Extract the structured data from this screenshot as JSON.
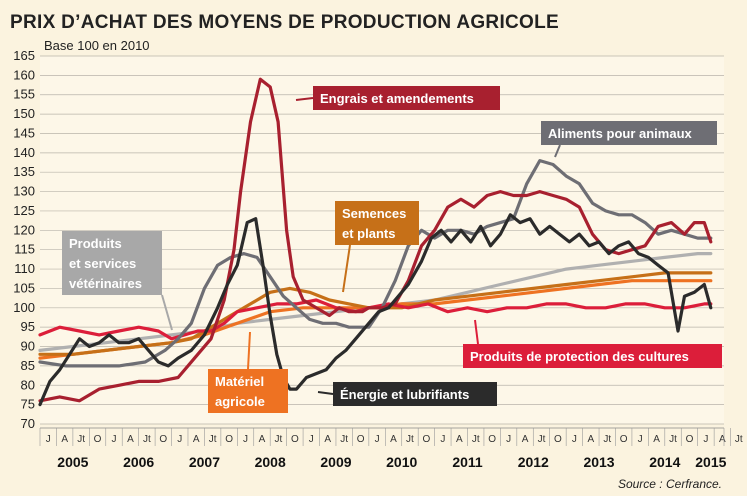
{
  "chart_data": {
    "type": "line",
    "title": "PRIX D’ACHAT DES MOYENS DE PRODUCTION AGRICOLE",
    "subtitle": "Base 100 en 2010",
    "source": "Source : Cerfrance.",
    "ylim": [
      70,
      165
    ],
    "yticks": [
      70,
      75,
      80,
      85,
      90,
      95,
      100,
      105,
      110,
      115,
      120,
      125,
      130,
      135,
      140,
      145,
      150,
      155,
      160,
      165
    ],
    "years": [
      "2005",
      "2006",
      "2007",
      "2008",
      "2009",
      "2010",
      "2011",
      "2012",
      "2013",
      "2014",
      "2015"
    ],
    "month_ticks": [
      "J",
      "A",
      "Jt",
      "O"
    ],
    "grid": true,
    "series": [
      {
        "name": "Engrais et amendements",
        "color": "#a8202f",
        "points": [
          [
            2005.0,
            76
          ],
          [
            2005.3,
            77
          ],
          [
            2005.6,
            76
          ],
          [
            2005.9,
            79
          ],
          [
            2006.2,
            80
          ],
          [
            2006.5,
            81
          ],
          [
            2006.8,
            81
          ],
          [
            2007.1,
            82
          ],
          [
            2007.4,
            88
          ],
          [
            2007.6,
            92
          ],
          [
            2007.8,
            102
          ],
          [
            2007.95,
            115
          ],
          [
            2008.05,
            130
          ],
          [
            2008.2,
            148
          ],
          [
            2008.35,
            159
          ],
          [
            2008.5,
            157
          ],
          [
            2008.62,
            148
          ],
          [
            2008.75,
            120
          ],
          [
            2008.85,
            108
          ],
          [
            2009.0,
            102
          ],
          [
            2009.2,
            100
          ],
          [
            2009.4,
            98
          ],
          [
            2009.55,
            100
          ],
          [
            2009.7,
            99
          ],
          [
            2009.9,
            99
          ],
          [
            2010.0,
            100
          ],
          [
            2010.2,
            100
          ],
          [
            2010.4,
            101
          ],
          [
            2010.6,
            107
          ],
          [
            2010.8,
            116
          ],
          [
            2011.0,
            120
          ],
          [
            2011.2,
            126
          ],
          [
            2011.4,
            128
          ],
          [
            2011.6,
            126
          ],
          [
            2011.8,
            129
          ],
          [
            2012.0,
            130
          ],
          [
            2012.2,
            129
          ],
          [
            2012.4,
            129
          ],
          [
            2012.6,
            130
          ],
          [
            2012.8,
            129
          ],
          [
            2013.0,
            128
          ],
          [
            2013.2,
            126
          ],
          [
            2013.4,
            119
          ],
          [
            2013.6,
            115
          ],
          [
            2013.8,
            114
          ],
          [
            2014.0,
            115
          ],
          [
            2014.2,
            116
          ],
          [
            2014.4,
            121
          ],
          [
            2014.6,
            122
          ],
          [
            2014.8,
            119
          ],
          [
            2014.95,
            122
          ],
          [
            2015.1,
            122
          ],
          [
            2015.2,
            117
          ]
        ]
      },
      {
        "name": "Aliments pour animaux",
        "color": "#6e6e74",
        "points": [
          [
            2005.0,
            86
          ],
          [
            2005.4,
            85
          ],
          [
            2005.8,
            85
          ],
          [
            2006.2,
            85
          ],
          [
            2006.6,
            86
          ],
          [
            2006.9,
            89
          ],
          [
            2007.1,
            92
          ],
          [
            2007.3,
            96
          ],
          [
            2007.5,
            105
          ],
          [
            2007.7,
            111
          ],
          [
            2007.9,
            113
          ],
          [
            2008.1,
            114
          ],
          [
            2008.3,
            113
          ],
          [
            2008.5,
            108
          ],
          [
            2008.7,
            103
          ],
          [
            2008.9,
            100
          ],
          [
            2009.1,
            97
          ],
          [
            2009.3,
            96
          ],
          [
            2009.5,
            96
          ],
          [
            2009.7,
            95
          ],
          [
            2010.0,
            95
          ],
          [
            2010.2,
            100
          ],
          [
            2010.4,
            107
          ],
          [
            2010.6,
            116
          ],
          [
            2010.8,
            120
          ],
          [
            2011.0,
            118
          ],
          [
            2011.2,
            120
          ],
          [
            2011.4,
            120
          ],
          [
            2011.6,
            119
          ],
          [
            2011.8,
            121
          ],
          [
            2012.0,
            122
          ],
          [
            2012.2,
            123
          ],
          [
            2012.4,
            132
          ],
          [
            2012.6,
            138
          ],
          [
            2012.8,
            137
          ],
          [
            2013.0,
            134
          ],
          [
            2013.2,
            132
          ],
          [
            2013.4,
            127
          ],
          [
            2013.6,
            125
          ],
          [
            2013.8,
            124
          ],
          [
            2014.0,
            124
          ],
          [
            2014.2,
            122
          ],
          [
            2014.4,
            119
          ],
          [
            2014.6,
            120
          ],
          [
            2014.8,
            119
          ],
          [
            2015.0,
            118
          ],
          [
            2015.2,
            118
          ]
        ]
      },
      {
        "name": "Énergie et lubrifiants",
        "color": "#2b2b2b",
        "points": [
          [
            2005.0,
            75
          ],
          [
            2005.15,
            81
          ],
          [
            2005.3,
            84
          ],
          [
            2005.45,
            88
          ],
          [
            2005.6,
            92
          ],
          [
            2005.75,
            90
          ],
          [
            2005.9,
            91
          ],
          [
            2006.05,
            93
          ],
          [
            2006.2,
            91
          ],
          [
            2006.35,
            91
          ],
          [
            2006.5,
            92
          ],
          [
            2006.65,
            89
          ],
          [
            2006.8,
            86
          ],
          [
            2006.95,
            85
          ],
          [
            2007.1,
            87
          ],
          [
            2007.3,
            89
          ],
          [
            2007.5,
            93
          ],
          [
            2007.7,
            100
          ],
          [
            2007.85,
            106
          ],
          [
            2008.0,
            111
          ],
          [
            2008.15,
            122
          ],
          [
            2008.28,
            123
          ],
          [
            2008.4,
            110
          ],
          [
            2008.5,
            98
          ],
          [
            2008.6,
            88
          ],
          [
            2008.7,
            82
          ],
          [
            2008.8,
            79
          ],
          [
            2008.9,
            79
          ],
          [
            2009.05,
            82
          ],
          [
            2009.2,
            83
          ],
          [
            2009.35,
            84
          ],
          [
            2009.5,
            87
          ],
          [
            2009.65,
            89
          ],
          [
            2009.8,
            92
          ],
          [
            2010.0,
            96
          ],
          [
            2010.15,
            99
          ],
          [
            2010.3,
            100
          ],
          [
            2010.45,
            103
          ],
          [
            2010.6,
            106
          ],
          [
            2010.8,
            112
          ],
          [
            2010.95,
            118
          ],
          [
            2011.1,
            120
          ],
          [
            2011.25,
            117
          ],
          [
            2011.4,
            120
          ],
          [
            2011.55,
            117
          ],
          [
            2011.7,
            121
          ],
          [
            2011.85,
            116
          ],
          [
            2012.0,
            119
          ],
          [
            2012.15,
            124
          ],
          [
            2012.3,
            122
          ],
          [
            2012.45,
            123
          ],
          [
            2012.6,
            119
          ],
          [
            2012.75,
            121
          ],
          [
            2012.9,
            119
          ],
          [
            2013.05,
            117
          ],
          [
            2013.2,
            119
          ],
          [
            2013.35,
            116
          ],
          [
            2013.5,
            117
          ],
          [
            2013.65,
            114
          ],
          [
            2013.8,
            116
          ],
          [
            2013.95,
            117
          ],
          [
            2014.1,
            114
          ],
          [
            2014.25,
            113
          ],
          [
            2014.4,
            111
          ],
          [
            2014.55,
            109
          ],
          [
            2014.7,
            94
          ],
          [
            2014.8,
            103
          ],
          [
            2014.95,
            104
          ],
          [
            2015.1,
            106
          ],
          [
            2015.2,
            100
          ]
        ]
      },
      {
        "name": "Semences et plants",
        "color": "#c67018",
        "points": [
          [
            2005.0,
            88
          ],
          [
            2005.5,
            88
          ],
          [
            2006.0,
            89
          ],
          [
            2006.5,
            90
          ],
          [
            2007.0,
            91
          ],
          [
            2007.3,
            92
          ],
          [
            2007.6,
            95
          ],
          [
            2007.9,
            98
          ],
          [
            2008.2,
            101
          ],
          [
            2008.5,
            104
          ],
          [
            2008.8,
            105
          ],
          [
            2009.1,
            104
          ],
          [
            2009.4,
            102
          ],
          [
            2009.7,
            101
          ],
          [
            2010.0,
            100
          ],
          [
            2010.5,
            100
          ],
          [
            2011.0,
            102
          ],
          [
            2011.5,
            103
          ],
          [
            2012.0,
            104
          ],
          [
            2012.5,
            105
          ],
          [
            2013.0,
            106
          ],
          [
            2013.5,
            107
          ],
          [
            2014.0,
            108
          ],
          [
            2014.5,
            109
          ],
          [
            2015.0,
            109
          ],
          [
            2015.2,
            109
          ]
        ]
      },
      {
        "name": "Produits et services vétérinaires",
        "color": "#b0b0b0",
        "points": [
          [
            2005.0,
            89
          ],
          [
            2005.5,
            90
          ],
          [
            2006.0,
            91
          ],
          [
            2006.5,
            92
          ],
          [
            2007.0,
            93
          ],
          [
            2007.5,
            94
          ],
          [
            2008.0,
            96
          ],
          [
            2008.5,
            97
          ],
          [
            2009.0,
            98
          ],
          [
            2009.5,
            99
          ],
          [
            2010.0,
            100
          ],
          [
            2010.5,
            101
          ],
          [
            2011.0,
            102
          ],
          [
            2011.5,
            104
          ],
          [
            2012.0,
            106
          ],
          [
            2012.5,
            108
          ],
          [
            2013.0,
            110
          ],
          [
            2013.5,
            111
          ],
          [
            2014.0,
            112
          ],
          [
            2014.5,
            113
          ],
          [
            2015.0,
            114
          ],
          [
            2015.2,
            114
          ]
        ]
      },
      {
        "name": "Matériel agricole",
        "color": "#ee7222",
        "points": [
          [
            2005.0,
            87
          ],
          [
            2005.5,
            88
          ],
          [
            2006.0,
            89
          ],
          [
            2006.5,
            90
          ],
          [
            2007.0,
            91
          ],
          [
            2007.5,
            93
          ],
          [
            2008.0,
            96
          ],
          [
            2008.5,
            99
          ],
          [
            2009.0,
            100
          ],
          [
            2009.5,
            100
          ],
          [
            2010.0,
            100
          ],
          [
            2010.5,
            101
          ],
          [
            2011.0,
            101
          ],
          [
            2011.5,
            102
          ],
          [
            2012.0,
            103
          ],
          [
            2012.5,
            104
          ],
          [
            2013.0,
            105
          ],
          [
            2013.5,
            106
          ],
          [
            2014.0,
            107
          ],
          [
            2014.5,
            107
          ],
          [
            2015.0,
            107
          ],
          [
            2015.2,
            107
          ]
        ]
      },
      {
        "name": "Produits de protection des cultures",
        "color": "#dc1e3a",
        "points": [
          [
            2005.0,
            93
          ],
          [
            2005.3,
            95
          ],
          [
            2005.6,
            94
          ],
          [
            2005.9,
            93
          ],
          [
            2006.2,
            94
          ],
          [
            2006.5,
            95
          ],
          [
            2006.8,
            94
          ],
          [
            2007.0,
            92
          ],
          [
            2007.2,
            93
          ],
          [
            2007.4,
            94
          ],
          [
            2007.6,
            94
          ],
          [
            2007.8,
            96
          ],
          [
            2008.0,
            99
          ],
          [
            2008.3,
            100
          ],
          [
            2008.6,
            101
          ],
          [
            2008.9,
            101
          ],
          [
            2009.2,
            102
          ],
          [
            2009.5,
            100
          ],
          [
            2009.8,
            99
          ],
          [
            2010.0,
            100
          ],
          [
            2010.3,
            101
          ],
          [
            2010.6,
            100
          ],
          [
            2010.9,
            101
          ],
          [
            2011.2,
            99
          ],
          [
            2011.5,
            100
          ],
          [
            2011.8,
            99
          ],
          [
            2012.1,
            100
          ],
          [
            2012.4,
            100
          ],
          [
            2012.7,
            101
          ],
          [
            2013.0,
            101
          ],
          [
            2013.3,
            100
          ],
          [
            2013.6,
            100
          ],
          [
            2013.9,
            101
          ],
          [
            2014.2,
            101
          ],
          [
            2014.5,
            100
          ],
          [
            2014.8,
            100
          ],
          [
            2015.1,
            101
          ],
          [
            2015.2,
            101
          ]
        ]
      }
    ],
    "labels": [
      {
        "text": "Engrais et amendements",
        "bg": "#a8202f"
      },
      {
        "text": "Aliments pour animaux",
        "bg": "#6e6e74"
      },
      {
        "text": "Semences",
        "text2": "et plants",
        "bg": "#c67018"
      },
      {
        "text": "Produits",
        "text2": "et services",
        "text3": "vétérinaires",
        "bg": "#a8a8a8"
      },
      {
        "text": "Produits de protection des cultures",
        "bg": "#dc1e3a"
      },
      {
        "text": "Matériel",
        "text2": "agricole",
        "bg": "#ee7222"
      },
      {
        "text": "Énergie et lubrifiants",
        "bg": "#2b2b2b"
      }
    ]
  }
}
